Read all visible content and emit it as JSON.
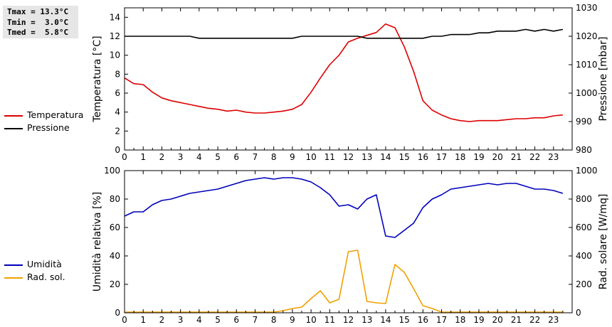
{
  "stats": {
    "tmax": "Tmax = 13.3°C",
    "tmin": "Tmin =  3.0°C",
    "tmed": "Tmed =  5.8°C"
  },
  "chart_data": [
    {
      "type": "line",
      "x": [
        0,
        0.5,
        1,
        1.5,
        2,
        2.5,
        3,
        3.5,
        4,
        4.5,
        5,
        5.5,
        6,
        6.5,
        7,
        7.5,
        8,
        8.5,
        9,
        9.5,
        10,
        10.5,
        11,
        11.5,
        12,
        12.5,
        13,
        13.5,
        14,
        14.5,
        15,
        15.5,
        16,
        16.5,
        17,
        17.5,
        18,
        18.5,
        19,
        19.5,
        20,
        20.5,
        21,
        21.5,
        22,
        22.5,
        23,
        23.5
      ],
      "xlim": [
        0,
        24
      ],
      "xticks": [
        0,
        1,
        2,
        3,
        4,
        5,
        6,
        7,
        8,
        9,
        10,
        11,
        12,
        13,
        14,
        15,
        16,
        17,
        18,
        19,
        20,
        21,
        22,
        23
      ],
      "series": [
        {
          "name": "Temperatura",
          "axis": "left",
          "color": "#dd0000",
          "values": [
            7.6,
            7.0,
            6.9,
            6.1,
            5.5,
            5.2,
            5.0,
            4.8,
            4.6,
            4.4,
            4.3,
            4.1,
            4.2,
            4.0,
            3.9,
            3.9,
            4.0,
            4.1,
            4.3,
            4.8,
            6.1,
            7.6,
            9.0,
            10.0,
            11.4,
            11.8,
            12.1,
            12.4,
            13.3,
            12.9,
            10.9,
            8.3,
            5.2,
            4.2,
            3.7,
            3.3,
            3.1,
            3.0,
            3.1,
            3.1,
            3.1,
            3.2,
            3.3,
            3.3,
            3.4,
            3.4,
            3.6,
            3.7
          ]
        },
        {
          "name": "Pressione",
          "axis": "right",
          "color": "#000000",
          "values": [
            1020,
            1020,
            1020,
            1020,
            1020,
            1020,
            1020,
            1020,
            1019.3,
            1019.3,
            1019.3,
            1019.3,
            1019.3,
            1019.3,
            1019.3,
            1019.3,
            1019.3,
            1019.3,
            1019.3,
            1020,
            1020,
            1020,
            1020,
            1020,
            1020,
            1020,
            1019.3,
            1019.3,
            1019.3,
            1019.3,
            1019.3,
            1019.3,
            1019.3,
            1020,
            1020,
            1020.6,
            1020.6,
            1020.6,
            1021.2,
            1021.2,
            1021.8,
            1021.8,
            1021.8,
            1022.4,
            1021.8,
            1022.4,
            1021.8,
            1022.4
          ]
        }
      ],
      "ylabel": "Temperatura [°C]",
      "ylim": [
        0,
        15
      ],
      "yticks": [
        0,
        2,
        4,
        6,
        8,
        10,
        12,
        14
      ],
      "ylabel_right": "Pressione [mbar]",
      "ylim_right": [
        980,
        1030
      ],
      "yticks_right": [
        980,
        990,
        1000,
        1010,
        1020,
        1030
      ],
      "grid": false,
      "legend": "left"
    },
    {
      "type": "line",
      "x": [
        0,
        0.5,
        1,
        1.5,
        2,
        2.5,
        3,
        3.5,
        4,
        4.5,
        5,
        5.5,
        6,
        6.5,
        7,
        7.5,
        8,
        8.5,
        9,
        9.5,
        10,
        10.5,
        11,
        11.5,
        12,
        12.5,
        13,
        13.5,
        14,
        14.5,
        15,
        15.5,
        16,
        16.5,
        17,
        17.5,
        18,
        18.5,
        19,
        19.5,
        20,
        20.5,
        21,
        21.5,
        22,
        22.5,
        23,
        23.5
      ],
      "xlim": [
        0,
        24
      ],
      "xticks": [
        0,
        1,
        2,
        3,
        4,
        5,
        6,
        7,
        8,
        9,
        10,
        11,
        12,
        13,
        14,
        15,
        16,
        17,
        18,
        19,
        20,
        21,
        22,
        23
      ],
      "series": [
        {
          "name": "Umidità",
          "axis": "left",
          "color": "#0000bb",
          "values": [
            68,
            71,
            71,
            76,
            79,
            80,
            82,
            84,
            85,
            86,
            87,
            89,
            91,
            93,
            94,
            95,
            94,
            95,
            95,
            94,
            92,
            88,
            83,
            75,
            76,
            73,
            80,
            83,
            54,
            53,
            58,
            63,
            74,
            80,
            83,
            87,
            88,
            89,
            90,
            91,
            90,
            91,
            91,
            89,
            87,
            87,
            86,
            84
          ]
        },
        {
          "name": "Rad. sol.",
          "axis": "right",
          "color": "#f0a000",
          "values": [
            5,
            5,
            5,
            5,
            5,
            5,
            5,
            5,
            5,
            5,
            5,
            5,
            5,
            5,
            5,
            5,
            5,
            15,
            30,
            40,
            100,
            155,
            70,
            95,
            430,
            440,
            80,
            70,
            65,
            340,
            285,
            170,
            50,
            30,
            5,
            5,
            5,
            5,
            5,
            5,
            5,
            5,
            5,
            5,
            5,
            5,
            5,
            5
          ]
        }
      ],
      "ylabel": "Umidità relativa [%]",
      "ylim": [
        0,
        100
      ],
      "yticks": [
        0,
        20,
        40,
        60,
        80,
        100
      ],
      "ylabel_right": "Rad. solare [W/mq]",
      "ylim_right": [
        0,
        1000
      ],
      "yticks_right": [
        0,
        200,
        400,
        600,
        800,
        1000
      ],
      "grid": false,
      "legend": "left"
    }
  ]
}
